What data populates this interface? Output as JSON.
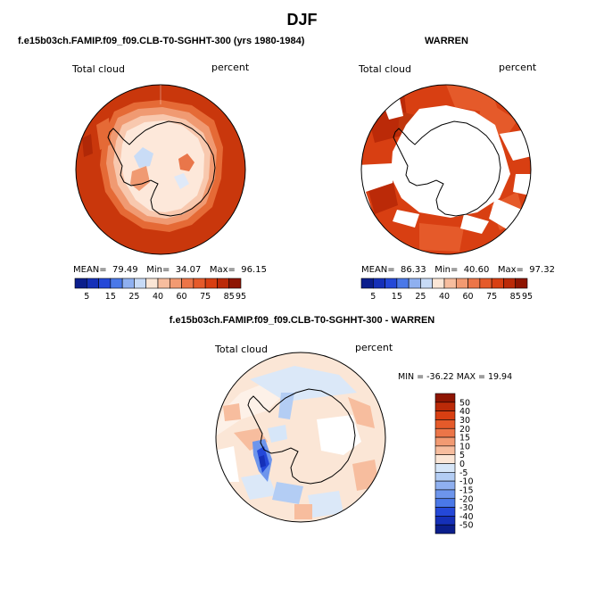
{
  "page": {
    "title": "DJF"
  },
  "panels": [
    {
      "id": "model",
      "header": "f.e15b03ch.FAMIP.f09_f09.CLB-T0-SGHHT-300 (yrs 1980-1984)",
      "variable_label": "Total cloud",
      "units_label": "percent",
      "stats": {
        "mean_label": "MEAN=",
        "mean": "79.49",
        "min_label": "Min=",
        "min": "34.07",
        "max_label": "Max=",
        "max": "96.15"
      }
    },
    {
      "id": "obs",
      "header": "WARREN",
      "variable_label": "Total cloud",
      "units_label": "percent",
      "stats": {
        "mean_label": "MEAN=",
        "mean": "86.33",
        "min_label": "Min=",
        "min": "40.60",
        "max_label": "Max=",
        "max": "97.32"
      }
    },
    {
      "id": "diff",
      "header": "f.e15b03ch.FAMIP.f09_f09.CLB-T0-SGHHT-300 - WARREN",
      "variable_label": "Total cloud",
      "units_label": "percent",
      "stats_line": "MIN = -36.22 MAX =  19.94"
    }
  ],
  "colorbars": {
    "absolute": {
      "colors": [
        "#0b1e8c",
        "#1530b8",
        "#2448d8",
        "#4a78e8",
        "#8fb0f0",
        "#c7daf6",
        "#fbe6d6",
        "#f7bd9e",
        "#f29a72",
        "#ec7548",
        "#e55a2a",
        "#d83f12",
        "#bb2a08",
        "#8e1502"
      ],
      "labels": [
        "5",
        "15",
        "25",
        "40",
        "60",
        "75",
        "85",
        "95"
      ]
    },
    "difference": {
      "colors": [
        "#8e1502",
        "#bb2a08",
        "#d83f12",
        "#e55a2a",
        "#ec7548",
        "#f29a72",
        "#f7bd9e",
        "#fbe6d6",
        "#d6e6f8",
        "#b3cdf4",
        "#8fb0f0",
        "#6d95ec",
        "#4a78e8",
        "#2448d8",
        "#1530b8",
        "#0b1e8c"
      ],
      "labels": [
        "50",
        "40",
        "30",
        "20",
        "15",
        "10",
        "5",
        "0",
        "-5",
        "-10",
        "-15",
        "-20",
        "-30",
        "-40",
        "-50"
      ]
    }
  },
  "chart_data": [
    {
      "type": "heatmap",
      "title": "f.e15b03ch.FAMIP.f09_f09.CLB-T0-SGHHT-300 (yrs 1980-1984)",
      "field": "Total cloud",
      "units": "percent",
      "projection": "south polar stereographic",
      "mean": 79.49,
      "min": 34.07,
      "max": 96.15,
      "levels": [
        5,
        15,
        25,
        40,
        60,
        75,
        85,
        95
      ]
    },
    {
      "type": "heatmap",
      "title": "WARREN",
      "field": "Total cloud",
      "units": "percent",
      "projection": "south polar stereographic",
      "mean": 86.33,
      "min": 40.6,
      "max": 97.32,
      "levels": [
        5,
        15,
        25,
        40,
        60,
        75,
        85,
        95
      ]
    },
    {
      "type": "heatmap",
      "title": "f.e15b03ch.FAMIP.f09_f09.CLB-T0-SGHHT-300 - WARREN",
      "field": "Total cloud",
      "units": "percent",
      "projection": "south polar stereographic",
      "min": -36.22,
      "max": 19.94,
      "levels": [
        50,
        40,
        30,
        20,
        15,
        10,
        5,
        0,
        -5,
        -10,
        -15,
        -20,
        -30,
        -40,
        -50
      ]
    }
  ]
}
